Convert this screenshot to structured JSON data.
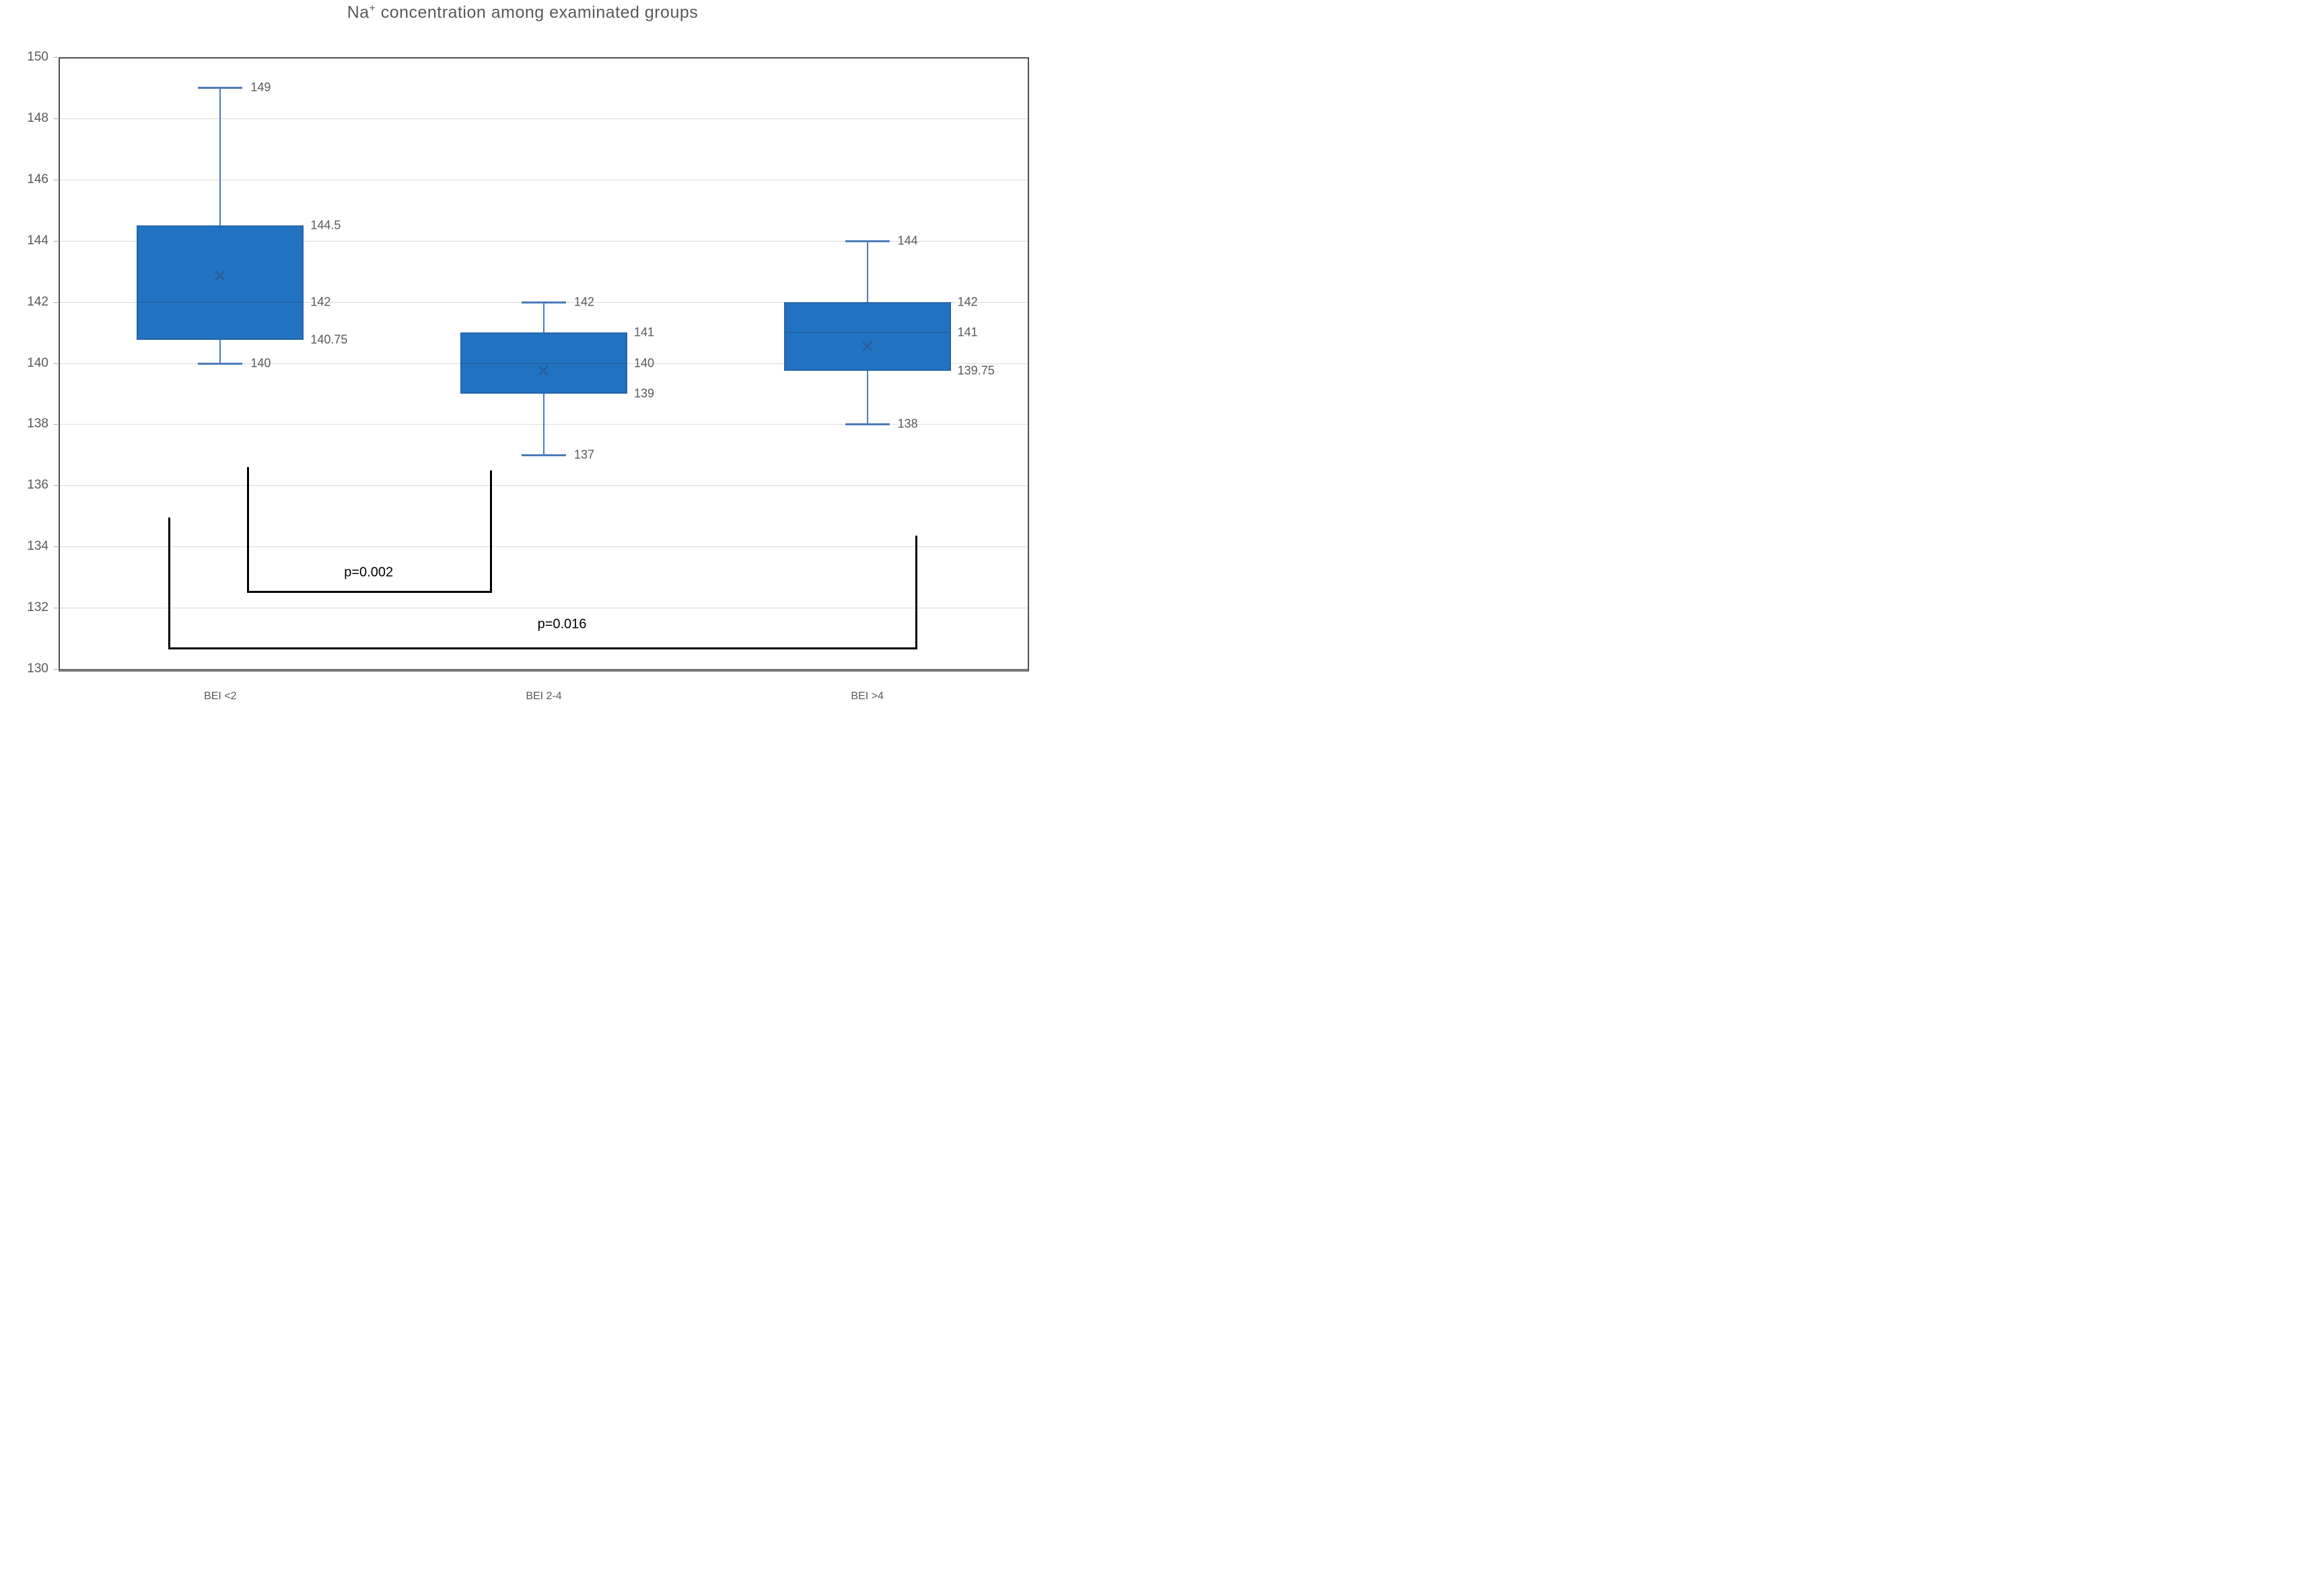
{
  "title": {
    "base": "Na",
    "sup": "+",
    "rest": " concentration among examinated groups"
  },
  "chart_data": {
    "type": "box",
    "title": "Na+ concentration among examinated groups",
    "categories": [
      "BEI <2",
      "BEI 2-4",
      "BEI >4"
    ],
    "ylim": [
      130,
      150
    ],
    "ytick_step": 2,
    "ytick_labels": [
      "150",
      "148",
      "146",
      "144",
      "142",
      "140",
      "138",
      "136",
      "134",
      "132",
      "130"
    ],
    "grid": true,
    "legend": "none",
    "boxes": [
      {
        "category": "BEI <2",
        "min": 140,
        "q1": 140.75,
        "median": 142,
        "q3": 144.5,
        "max": 149,
        "mean": 142.85,
        "labels": {
          "max": "149",
          "q3": "144.5",
          "median": "142",
          "q1": "140.75",
          "min": "140"
        }
      },
      {
        "category": "BEI 2-4",
        "min": 137,
        "q1": 139,
        "median": 140,
        "q3": 141,
        "max": 142,
        "mean": 139.75,
        "labels": {
          "max": "142",
          "q3": "141",
          "median": "140",
          "q1": "139",
          "min": "137"
        }
      },
      {
        "category": "BEI >4",
        "min": 138,
        "q1": 139.75,
        "median": 141,
        "q3": 142,
        "max": 144,
        "mean": 140.55,
        "labels": {
          "max": "144",
          "q3": "142",
          "median": "141",
          "q1": "139.75",
          "min": "138"
        }
      }
    ],
    "annotations": [
      {
        "label": "p=0.002",
        "group_a": 0,
        "group_b": 1
      },
      {
        "label": "p=0.016",
        "group_a": 0,
        "group_b": 2
      }
    ],
    "colors": {
      "box_fill": "#2173C2",
      "box_border": "#2564A8",
      "median": "#2564A8",
      "whisker": "#4C7CB8",
      "mean_marker": "#2B5F9F",
      "gridline": "#DCDCDE",
      "axis_border": "#4F4F4F",
      "tick_label": "#595959",
      "value_label": "#595959",
      "p_label": "#000000",
      "background": "#FFFFFF"
    }
  }
}
